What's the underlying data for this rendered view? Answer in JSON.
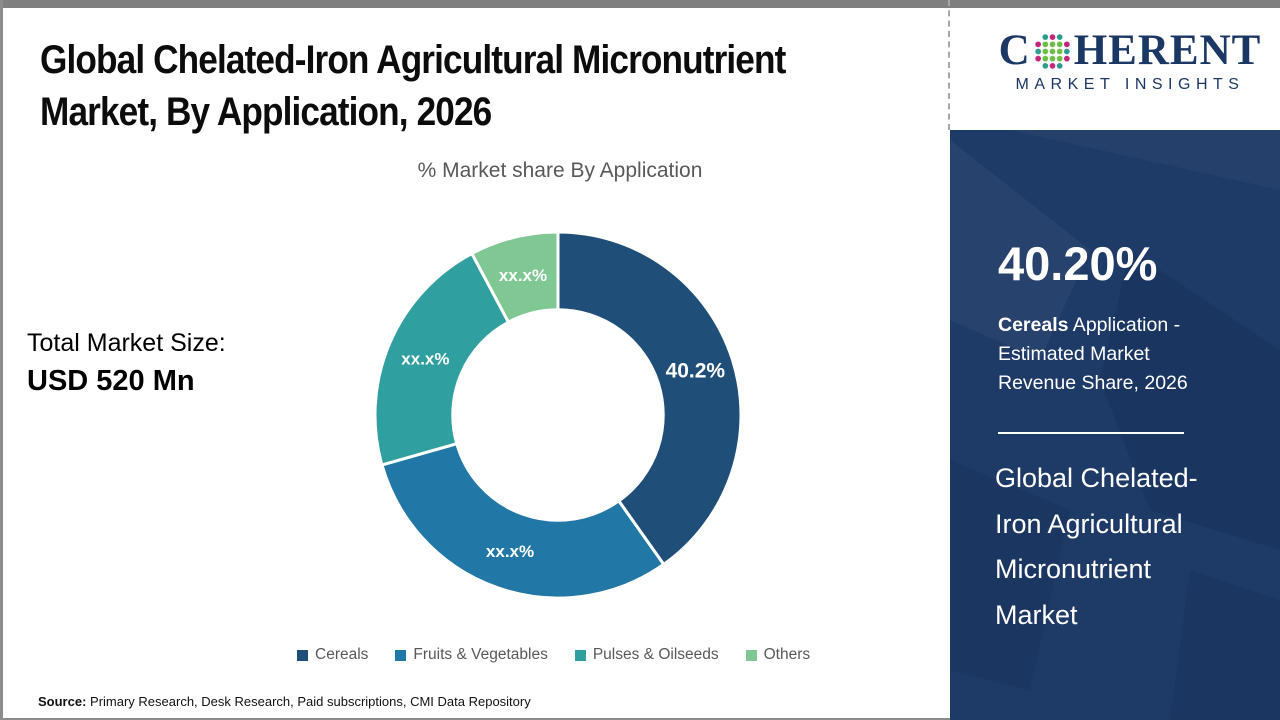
{
  "page": {
    "title": "Global Chelated-Iron Agricultural Micronutrient Market, By Application, 2026",
    "source_label": "Source:",
    "source_text": " Primary Research, Desk Research, Paid subscriptions, CMI Data Repository"
  },
  "brand": {
    "logo_first_letter": "C",
    "logo_rest": "HERENT",
    "logo_subtitle": "MARKET INSIGHTS",
    "navy": "#1b3764",
    "globe_dot_colors": {
      "teal": "#2a9d8f",
      "green": "#6fbe47",
      "magenta": "#c2267d"
    }
  },
  "stats": {
    "total_label": "Total Market Size:",
    "total_value": "USD 520 Mn"
  },
  "sidebar": {
    "highlight_value": "40.20%",
    "highlight_bold": "Cereals",
    "highlight_rest": "  Application - Estimated Market Revenue Share, 2026",
    "market_name": "Global Chelated-Iron Agricultural Micronutrient Market",
    "background_color": "#1e3a66"
  },
  "chart_data": {
    "type": "pie",
    "donut": true,
    "title": "% Market share By Application",
    "categories": [
      "Cereals",
      "Fruits & Vegetables",
      "Pulses & Oilseeds",
      "Others"
    ],
    "values": [
      40.2,
      30.4,
      21.6,
      7.8
    ],
    "slice_labels": [
      "40.2%",
      "xx.x%",
      "xx.x%",
      "xx.x%"
    ],
    "colors": [
      "#1f4e79",
      "#2177a6",
      "#309fa0",
      "#7fc893"
    ],
    "start_angle_deg": 0,
    "clockwise": true,
    "inner_radius_ratio": 0.575,
    "separator_color": "#ffffff",
    "legend_position": "bottom"
  }
}
